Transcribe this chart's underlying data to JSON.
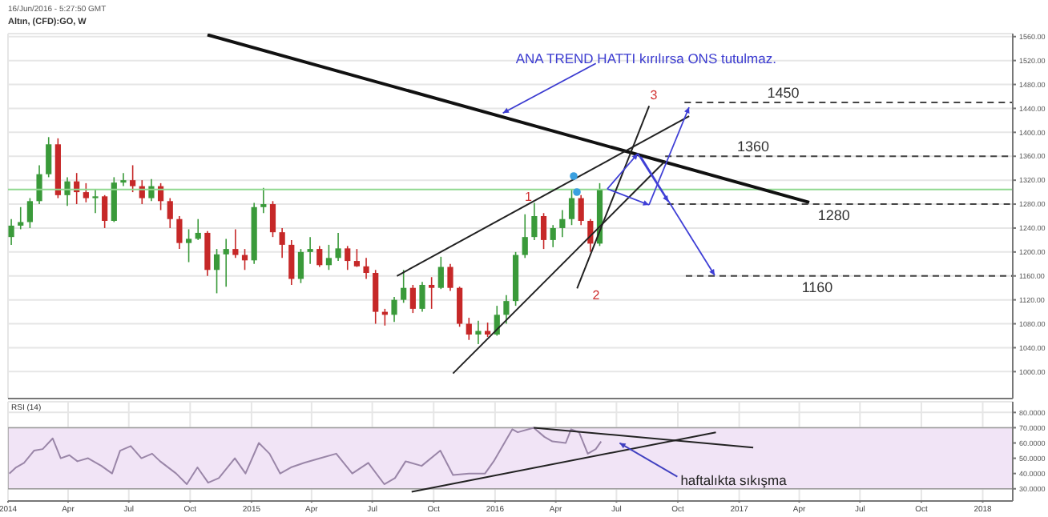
{
  "chart_data": [
    {
      "type": "candlestick",
      "title": "Altın, (CFD):GO, W",
      "subtitle": "16/Jun/2016 - 5:27:50 GMT",
      "x": [
        "2014-01-06",
        "2014-01-20",
        "2014-02-03",
        "2014-02-17",
        "2014-03-03",
        "2014-03-17",
        "2014-03-31",
        "2014-04-14",
        "2014-04-28",
        "2014-05-12",
        "2014-05-26",
        "2014-06-09",
        "2014-06-23",
        "2014-07-07",
        "2014-07-21",
        "2014-08-04",
        "2014-08-18",
        "2014-09-01",
        "2014-09-15",
        "2014-09-29",
        "2014-10-13",
        "2014-10-27",
        "2014-11-10",
        "2014-11-24",
        "2014-12-08",
        "2014-12-22",
        "2015-01-05",
        "2015-01-19",
        "2015-02-02",
        "2015-02-16",
        "2015-03-02",
        "2015-03-16",
        "2015-03-30",
        "2015-04-13",
        "2015-04-27",
        "2015-05-11",
        "2015-05-25",
        "2015-06-08",
        "2015-06-22",
        "2015-07-06",
        "2015-07-20",
        "2015-08-03",
        "2015-08-17",
        "2015-08-31",
        "2015-09-14",
        "2015-09-28",
        "2015-10-12",
        "2015-10-26",
        "2015-11-09",
        "2015-11-23",
        "2015-12-07",
        "2015-12-21",
        "2016-01-04",
        "2016-01-18",
        "2016-02-01",
        "2016-02-15",
        "2016-02-29",
        "2016-03-14",
        "2016-03-28",
        "2016-04-11",
        "2016-04-25",
        "2016-05-09",
        "2016-05-23",
        "2016-06-06"
      ],
      "ohlc": [
        [
          1225,
          1255,
          1212,
          1244
        ],
        [
          1244,
          1275,
          1238,
          1250
        ],
        [
          1250,
          1290,
          1240,
          1285
        ],
        [
          1285,
          1345,
          1280,
          1330
        ],
        [
          1330,
          1392,
          1325,
          1380
        ],
        [
          1380,
          1390,
          1290,
          1295
        ],
        [
          1295,
          1325,
          1277,
          1318
        ],
        [
          1318,
          1332,
          1280,
          1300
        ],
        [
          1300,
          1315,
          1283,
          1290
        ],
        [
          1290,
          1305,
          1265,
          1293
        ],
        [
          1293,
          1295,
          1240,
          1252
        ],
        [
          1252,
          1325,
          1250,
          1316
        ],
        [
          1316,
          1332,
          1310,
          1320
        ],
        [
          1320,
          1345,
          1300,
          1310
        ],
        [
          1310,
          1320,
          1280,
          1290
        ],
        [
          1290,
          1322,
          1285,
          1310
        ],
        [
          1310,
          1315,
          1270,
          1285
        ],
        [
          1285,
          1290,
          1240,
          1255
        ],
        [
          1255,
          1260,
          1205,
          1215
        ],
        [
          1215,
          1238,
          1183,
          1222
        ],
        [
          1222,
          1255,
          1220,
          1232
        ],
        [
          1232,
          1235,
          1160,
          1170
        ],
        [
          1170,
          1205,
          1131,
          1196
        ],
        [
          1196,
          1222,
          1142,
          1205
        ],
        [
          1205,
          1238,
          1190,
          1195
        ],
        [
          1195,
          1205,
          1170,
          1186
        ],
        [
          1186,
          1282,
          1180,
          1275
        ],
        [
          1275,
          1307,
          1265,
          1280
        ],
        [
          1280,
          1285,
          1225,
          1233
        ],
        [
          1233,
          1240,
          1190,
          1212
        ],
        [
          1212,
          1220,
          1145,
          1155
        ],
        [
          1155,
          1205,
          1148,
          1200
        ],
        [
          1200,
          1225,
          1180,
          1205
        ],
        [
          1205,
          1210,
          1175,
          1178
        ],
        [
          1178,
          1212,
          1170,
          1190
        ],
        [
          1190,
          1232,
          1185,
          1206
        ],
        [
          1206,
          1210,
          1170,
          1185
        ],
        [
          1185,
          1205,
          1175,
          1176
        ],
        [
          1176,
          1190,
          1155,
          1165
        ],
        [
          1165,
          1170,
          1080,
          1100
        ],
        [
          1100,
          1105,
          1077,
          1095
        ],
        [
          1095,
          1125,
          1083,
          1120
        ],
        [
          1120,
          1170,
          1115,
          1140
        ],
        [
          1140,
          1145,
          1098,
          1105
        ],
        [
          1105,
          1150,
          1100,
          1145
        ],
        [
          1145,
          1158,
          1105,
          1140
        ],
        [
          1140,
          1192,
          1138,
          1175
        ],
        [
          1175,
          1180,
          1135,
          1140
        ],
        [
          1140,
          1142,
          1075,
          1080
        ],
        [
          1080,
          1090,
          1053,
          1062
        ],
        [
          1062,
          1085,
          1046,
          1068
        ],
        [
          1068,
          1082,
          1058,
          1062
        ],
        [
          1062,
          1110,
          1060,
          1095
        ],
        [
          1095,
          1128,
          1080,
          1118
        ],
        [
          1118,
          1200,
          1110,
          1195
        ],
        [
          1195,
          1263,
          1190,
          1225
        ],
        [
          1225,
          1282,
          1220,
          1260
        ],
        [
          1260,
          1265,
          1205,
          1220
        ],
        [
          1220,
          1245,
          1208,
          1240
        ],
        [
          1240,
          1270,
          1225,
          1255
        ],
        [
          1255,
          1305,
          1245,
          1290
        ],
        [
          1290,
          1295,
          1245,
          1252
        ],
        [
          1252,
          1255,
          1200,
          1214
        ],
        [
          1214,
          1315,
          1210,
          1305
        ]
      ],
      "colors": [
        "#3a9a3a",
        "#3a9a3a",
        "#3a9a3a",
        "#3a9a3a",
        "#3a9a3a",
        "#c62828",
        "#3a9a3a",
        "#c62828",
        "#c62828",
        "#3a9a3a",
        "#c62828",
        "#3a9a3a",
        "#3a9a3a",
        "#c62828",
        "#c62828",
        "#3a9a3a",
        "#c62828",
        "#c62828",
        "#c62828",
        "#3a9a3a",
        "#3a9a3a",
        "#c62828",
        "#3a9a3a",
        "#3a9a3a",
        "#c62828",
        "#c62828",
        "#3a9a3a",
        "#3a9a3a",
        "#c62828",
        "#c62828",
        "#c62828",
        "#3a9a3a",
        "#3a9a3a",
        "#c62828",
        "#3a9a3a",
        "#3a9a3a",
        "#c62828",
        "#c62828",
        "#c62828",
        "#c62828",
        "#c62828",
        "#3a9a3a",
        "#3a9a3a",
        "#c62828",
        "#3a9a3a",
        "#c62828",
        "#3a9a3a",
        "#c62828",
        "#c62828",
        "#c62828",
        "#3a9a3a",
        "#c62828",
        "#3a9a3a",
        "#3a9a3a",
        "#3a9a3a",
        "#3a9a3a",
        "#3a9a3a",
        "#c62828",
        "#3a9a3a",
        "#3a9a3a",
        "#3a9a3a",
        "#c62828",
        "#c62828",
        "#3a9a3a"
      ],
      "series": [
        {
          "type": "line",
          "color": "#111111",
          "x": [
            "2014-10-27",
            "2017-04-16"
          ],
          "values": [
            1563,
            1283
          ]
        },
        {
          "type": "line",
          "color": "#222222",
          "x": [
            "2015-08-07",
            "2016-10-18"
          ],
          "values": [
            1160,
            1427
          ]
        },
        {
          "type": "line",
          "color": "#222222",
          "x": [
            "2015-10-30",
            "2016-09-12"
          ],
          "values": [
            997,
            1352
          ]
        },
        {
          "type": "line",
          "color": "#222222",
          "x": [
            "2016-05-03",
            "2016-08-19"
          ],
          "values": [
            1139,
            1444
          ]
        },
        {
          "type": "line",
          "color": "#444444",
          "line_style": "dashed",
          "x": [
            "2016-10-11",
            "2018-02-15"
          ],
          "values": [
            1450,
            1450
          ]
        },
        {
          "type": "line",
          "color": "#444444",
          "line_style": "dashed",
          "x": [
            "2016-09-12",
            "2018-02-15"
          ],
          "values": [
            1360,
            1360
          ]
        },
        {
          "type": "line",
          "color": "#444444",
          "line_style": "dashed",
          "x": [
            "2016-09-15",
            "2018-02-15"
          ],
          "values": [
            1280,
            1280
          ]
        },
        {
          "type": "line",
          "color": "#444444",
          "line_style": "dashed",
          "x": [
            "2016-10-13",
            "2018-02-15"
          ],
          "values": [
            1160,
            1160
          ]
        }
      ],
      "ref_lines": [
        {
          "axis": "y",
          "value": 1304.6,
          "color": "#8fd88f"
        }
      ],
      "annotations": [
        {
          "text": "ANA TREND HATTI kırılırsa ONS tutulmaz.",
          "x": "2016-01-08",
          "y": 1435
        },
        {
          "text": "1",
          "x": "2016-02-20",
          "y": 1291
        },
        "2",
        "3",
        {
          "text": "1450",
          "x": "2017-03-08",
          "y": 1450
        },
        {
          "text": "1360",
          "x": "2017-01-22",
          "y": 1360
        },
        {
          "text": "1280",
          "x": "2017-05-23",
          "y": 1280
        },
        {
          "text": "1160",
          "x": "2017-04-28",
          "y": 1160
        }
      ],
      "xlim": [
        "2014-01-01",
        "2018-02-15"
      ],
      "xticks": [
        {
          "value": "2014-01-01",
          "label": null
        },
        {
          "value": "2014-04-01",
          "label": null
        },
        {
          "value": "2014-07-01",
          "label": null
        },
        {
          "value": "2014-10-01",
          "label": null
        },
        {
          "value": "2015-01-01",
          "label": null
        },
        {
          "value": "2015-04-01",
          "label": null
        },
        {
          "value": "2015-07-01",
          "label": null
        },
        {
          "value": "2015-10-01",
          "label": null
        },
        {
          "value": "2016-01-01",
          "label": null
        },
        {
          "value": "2016-04-01",
          "label": null
        },
        {
          "value": "2016-07-01",
          "label": null
        },
        {
          "value": "2016-10-01",
          "label": null
        },
        {
          "value": "2017-01-01",
          "label": null
        },
        {
          "value": "2017-04-01",
          "label": null
        },
        {
          "value": "2017-07-01",
          "label": null
        },
        {
          "value": "2017-10-01",
          "label": null
        },
        {
          "value": "2018-01-01",
          "label": null
        }
      ],
      "ylim": [
        955,
        1565
      ],
      "yticks": [
        {
          "value": 1000,
          "label": "1000.00"
        },
        {
          "value": 1040,
          "label": "1040.00"
        },
        {
          "value": 1080,
          "label": "1080.00"
        },
        {
          "value": 1120,
          "label": "1120.00"
        },
        {
          "value": 1160,
          "label": "1160.00"
        },
        {
          "value": 1200,
          "label": "1200.00"
        },
        {
          "value": 1240,
          "label": "1240.00"
        },
        {
          "value": 1280,
          "label": "1280.00"
        },
        {
          "value": 1320,
          "label": "1320.00"
        },
        {
          "value": 1360,
          "label": "1360.00"
        },
        {
          "value": 1400,
          "label": "1400.00"
        },
        {
          "value": 1440,
          "label": "1440.00"
        },
        {
          "value": 1480,
          "label": "1480.00"
        },
        {
          "value": 1520,
          "label": "1520.00"
        },
        {
          "value": 1560,
          "label": "1560.00"
        }
      ],
      "tick_labels": "y",
      "grid": true
    },
    {
      "type": "line",
      "title": "RSI (14)",
      "series": [
        {
          "color": "#9a86a8",
          "x": [
            "2014-01-03",
            "2014-01-13",
            "2014-01-25",
            "2014-02-09",
            "2014-02-22",
            "2014-03-09",
            "2014-03-21",
            "2014-04-03",
            "2014-04-15",
            "2014-05-01",
            "2014-05-21",
            "2014-06-06",
            "2014-06-18",
            "2014-07-04",
            "2014-07-20",
            "2014-08-05",
            "2014-08-17",
            "2014-09-10",
            "2014-09-26",
            "2014-10-12",
            "2014-10-28",
            "2014-11-13",
            "2014-12-07",
            "2014-12-23",
            "2015-01-12",
            "2015-01-28",
            "2015-02-13",
            "2015-03-01",
            "2015-03-21",
            "2015-04-14",
            "2015-05-08",
            "2015-06-01",
            "2015-06-25",
            "2015-07-19",
            "2015-08-04",
            "2015-08-20",
            "2015-09-13",
            "2015-10-11",
            "2015-10-30",
            "2015-11-23",
            "2015-12-17",
            "2015-12-30",
            "2016-01-27",
            "2016-02-04",
            "2016-02-28",
            "2016-03-15",
            "2016-03-27",
            "2016-04-16",
            "2016-04-24",
            "2016-05-06",
            "2016-05-19",
            "2016-05-31",
            "2016-06-08"
          ],
          "values": [
            40,
            44,
            47,
            55,
            56,
            63,
            50,
            52,
            48,
            50,
            45,
            40,
            55,
            58,
            50,
            53,
            48,
            40,
            33,
            44,
            34,
            37,
            50,
            40,
            60,
            53,
            40,
            44,
            47,
            50,
            53,
            40,
            47,
            33,
            37,
            48,
            45,
            55,
            39,
            40,
            40,
            48,
            69,
            67,
            70,
            64,
            61,
            60,
            69,
            67,
            53,
            56,
            61
          ]
        },
        {
          "color": "#222222",
          "x": [
            "2015-08-29",
            "2016-11-27"
          ],
          "values": [
            28,
            67
          ]
        },
        {
          "color": "#222222",
          "x": [
            "2016-02-28",
            "2017-01-22"
          ],
          "values": [
            70,
            57
          ]
        }
      ],
      "bands": [
        {
          "axis": "y",
          "from": 30,
          "to": 70,
          "color": "#f1e4f6"
        }
      ],
      "annotations": [
        {
          "text": "haftalıkta sıkışma",
          "x": "2016-07-01",
          "y": 61
        }
      ],
      "xlim": [
        "2014-01-01",
        "2018-02-15"
      ],
      "xticks": [
        {
          "value": "2014-01-01",
          "label": "2014"
        },
        {
          "value": "2014-04-01",
          "label": "Apr"
        },
        {
          "value": "2014-07-01",
          "label": "Jul"
        },
        {
          "value": "2014-10-01",
          "label": "Oct"
        },
        {
          "value": "2015-01-01",
          "label": "2015"
        },
        {
          "value": "2015-04-01",
          "label": "Apr"
        },
        {
          "value": "2015-07-01",
          "label": "Jul"
        },
        {
          "value": "2015-10-01",
          "label": "Oct"
        },
        {
          "value": "2016-01-01",
          "label": "2016"
        },
        {
          "value": "2016-04-01",
          "label": "Apr"
        },
        {
          "value": "2016-07-01",
          "label": "Jul"
        },
        {
          "value": "2016-10-01",
          "label": "Oct"
        },
        {
          "value": "2017-01-01",
          "label": "2017"
        },
        {
          "value": "2017-04-01",
          "label": "Apr"
        },
        {
          "value": "2017-07-01",
          "label": "Jul"
        },
        {
          "value": "2017-10-01",
          "label": "Oct"
        },
        {
          "value": "2018-01-01",
          "label": "2018"
        }
      ],
      "ylim": [
        22,
        87
      ],
      "yticks": [
        {
          "value": 30,
          "label": "30.0000"
        },
        {
          "value": 40,
          "label": "40.0000"
        },
        {
          "value": 50,
          "label": "50.0000"
        },
        {
          "value": 60,
          "label": "60.0000"
        },
        {
          "value": 70,
          "label": "70.0000"
        },
        {
          "value": 80,
          "label": "80.0000"
        }
      ],
      "grid": true
    }
  ]
}
